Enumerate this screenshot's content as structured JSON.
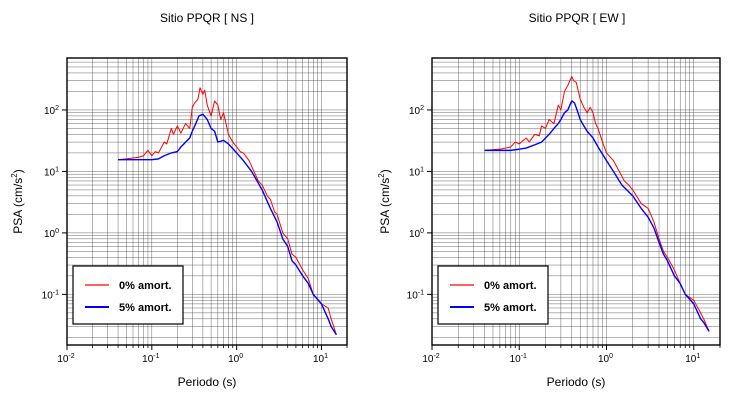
{
  "chart_data": [
    {
      "type": "line",
      "title": "Sitio PPQR [ NS ]",
      "xlabel": "Periodo (s)",
      "ylabel": "PSA (cm/s",
      "ylabel_sup": "2",
      "ylabel_close": ")",
      "xscale": "log",
      "yscale": "log",
      "xlim": [
        0.01,
        20
      ],
      "ylim": [
        0.015,
        700
      ],
      "grid": true,
      "legend_position": "bottom-left",
      "x_ticks": [
        {
          "base": "10",
          "exp": "-2"
        },
        {
          "base": "10",
          "exp": "-1"
        },
        {
          "base": "10",
          "exp": "0"
        },
        {
          "base": "10",
          "exp": "1"
        }
      ],
      "y_ticks": [
        {
          "base": "10",
          "exp": "-1"
        },
        {
          "base": "10",
          "exp": "0"
        },
        {
          "base": "10",
          "exp": "1"
        },
        {
          "base": "10",
          "exp": "2"
        }
      ],
      "series": [
        {
          "name": "0% amort.",
          "color": "#ff0000",
          "points": [
            [
              0.04,
              15.5
            ],
            [
              0.05,
              16
            ],
            [
              0.06,
              16.5
            ],
            [
              0.07,
              17
            ],
            [
              0.08,
              18
            ],
            [
              0.09,
              22
            ],
            [
              0.1,
              18
            ],
            [
              0.11,
              21
            ],
            [
              0.12,
              20
            ],
            [
              0.14,
              30
            ],
            [
              0.15,
              28
            ],
            [
              0.17,
              50
            ],
            [
              0.18,
              40
            ],
            [
              0.2,
              55
            ],
            [
              0.22,
              42
            ],
            [
              0.25,
              60
            ],
            [
              0.28,
              50
            ],
            [
              0.3,
              110
            ],
            [
              0.32,
              130
            ],
            [
              0.35,
              150
            ],
            [
              0.37,
              230
            ],
            [
              0.4,
              180
            ],
            [
              0.42,
              210
            ],
            [
              0.45,
              120
            ],
            [
              0.5,
              80
            ],
            [
              0.55,
              140
            ],
            [
              0.6,
              120
            ],
            [
              0.65,
              70
            ],
            [
              0.7,
              90
            ],
            [
              0.75,
              60
            ],
            [
              0.8,
              40
            ],
            [
              0.9,
              30
            ],
            [
              1.0,
              25
            ],
            [
              1.1,
              21
            ],
            [
              1.2,
              20
            ],
            [
              1.4,
              15
            ],
            [
              1.6,
              10
            ],
            [
              1.8,
              7
            ],
            [
              2.0,
              6
            ],
            [
              2.3,
              4
            ],
            [
              2.5,
              3.5
            ],
            [
              2.8,
              2.2
            ],
            [
              3.0,
              2.0
            ],
            [
              3.5,
              1.0
            ],
            [
              4.0,
              0.8
            ],
            [
              4.5,
              0.45
            ],
            [
              5.0,
              0.4
            ],
            [
              6.0,
              0.25
            ],
            [
              7.0,
              0.18
            ],
            [
              8.0,
              0.1
            ],
            [
              10,
              0.07
            ],
            [
              12,
              0.06
            ],
            [
              13,
              0.04
            ],
            [
              15,
              0.022
            ]
          ]
        },
        {
          "name": "5% amort.",
          "color": "#0000ff",
          "points": [
            [
              0.04,
              15.5
            ],
            [
              0.06,
              15.5
            ],
            [
              0.08,
              15.5
            ],
            [
              0.1,
              15.5
            ],
            [
              0.12,
              16
            ],
            [
              0.14,
              18
            ],
            [
              0.17,
              20
            ],
            [
              0.2,
              21
            ],
            [
              0.22,
              25
            ],
            [
              0.25,
              30
            ],
            [
              0.28,
              35
            ],
            [
              0.3,
              45
            ],
            [
              0.33,
              60
            ],
            [
              0.36,
              80
            ],
            [
              0.4,
              85
            ],
            [
              0.45,
              70
            ],
            [
              0.5,
              50
            ],
            [
              0.55,
              45
            ],
            [
              0.6,
              30
            ],
            [
              0.7,
              32
            ],
            [
              0.8,
              28
            ],
            [
              1.0,
              20
            ],
            [
              1.2,
              15
            ],
            [
              1.5,
              10
            ],
            [
              2.0,
              5
            ],
            [
              2.5,
              2.5
            ],
            [
              3.0,
              1.5
            ],
            [
              3.5,
              0.8
            ],
            [
              4.0,
              0.6
            ],
            [
              4.5,
              0.35
            ],
            [
              5.0,
              0.3
            ],
            [
              6.0,
              0.2
            ],
            [
              7.0,
              0.15
            ],
            [
              8.0,
              0.1
            ],
            [
              10,
              0.07
            ],
            [
              12,
              0.04
            ],
            [
              13,
              0.03
            ],
            [
              15,
              0.022
            ]
          ]
        }
      ]
    },
    {
      "type": "line",
      "title": "Sitio PPQR [ EW ]",
      "xlabel": "Periodo (s)",
      "ylabel": "PSA (cm/s",
      "ylabel_sup": "2",
      "ylabel_close": ")",
      "xscale": "log",
      "yscale": "log",
      "xlim": [
        0.01,
        20
      ],
      "ylim": [
        0.015,
        700
      ],
      "grid": true,
      "legend_position": "bottom-left",
      "x_ticks": [
        {
          "base": "10",
          "exp": "-2"
        },
        {
          "base": "10",
          "exp": "-1"
        },
        {
          "base": "10",
          "exp": "0"
        },
        {
          "base": "10",
          "exp": "1"
        }
      ],
      "y_ticks": [
        {
          "base": "10",
          "exp": "-1"
        },
        {
          "base": "10",
          "exp": "0"
        },
        {
          "base": "10",
          "exp": "1"
        },
        {
          "base": "10",
          "exp": "2"
        }
      ],
      "series": [
        {
          "name": "0% amort.",
          "color": "#ff0000",
          "points": [
            [
              0.04,
              22
            ],
            [
              0.06,
              23
            ],
            [
              0.08,
              25
            ],
            [
              0.09,
              30
            ],
            [
              0.1,
              28
            ],
            [
              0.12,
              35
            ],
            [
              0.13,
              30
            ],
            [
              0.15,
              40
            ],
            [
              0.17,
              38
            ],
            [
              0.18,
              55
            ],
            [
              0.2,
              50
            ],
            [
              0.22,
              70
            ],
            [
              0.25,
              60
            ],
            [
              0.28,
              120
            ],
            [
              0.3,
              100
            ],
            [
              0.33,
              200
            ],
            [
              0.36,
              250
            ],
            [
              0.4,
              350
            ],
            [
              0.42,
              300
            ],
            [
              0.45,
              280
            ],
            [
              0.5,
              150
            ],
            [
              0.55,
              110
            ],
            [
              0.6,
              90
            ],
            [
              0.65,
              110
            ],
            [
              0.7,
              90
            ],
            [
              0.75,
              60
            ],
            [
              0.8,
              50
            ],
            [
              0.9,
              30
            ],
            [
              1.0,
              20
            ],
            [
              1.2,
              15
            ],
            [
              1.4,
              10
            ],
            [
              1.6,
              7
            ],
            [
              1.8,
              6
            ],
            [
              2.0,
              5
            ],
            [
              2.5,
              3
            ],
            [
              3.0,
              2.5
            ],
            [
              3.5,
              1.5
            ],
            [
              4.0,
              0.8
            ],
            [
              4.5,
              0.5
            ],
            [
              5.0,
              0.4
            ],
            [
              6.0,
              0.25
            ],
            [
              7.0,
              0.15
            ],
            [
              8.0,
              0.1
            ],
            [
              10,
              0.08
            ],
            [
              12,
              0.05
            ],
            [
              13,
              0.04
            ],
            [
              15,
              0.025
            ]
          ]
        },
        {
          "name": "5% amort.",
          "color": "#0000ff",
          "points": [
            [
              0.04,
              22
            ],
            [
              0.06,
              22
            ],
            [
              0.08,
              22
            ],
            [
              0.1,
              23
            ],
            [
              0.12,
              24
            ],
            [
              0.15,
              27
            ],
            [
              0.18,
              30
            ],
            [
              0.2,
              35
            ],
            [
              0.22,
              40
            ],
            [
              0.25,
              50
            ],
            [
              0.28,
              60
            ],
            [
              0.3,
              70
            ],
            [
              0.33,
              90
            ],
            [
              0.36,
              100
            ],
            [
              0.4,
              140
            ],
            [
              0.43,
              130
            ],
            [
              0.46,
              100
            ],
            [
              0.5,
              70
            ],
            [
              0.55,
              55
            ],
            [
              0.6,
              45
            ],
            [
              0.7,
              35
            ],
            [
              0.8,
              25
            ],
            [
              1.0,
              15
            ],
            [
              1.2,
              10
            ],
            [
              1.5,
              6
            ],
            [
              2.0,
              4
            ],
            [
              2.5,
              2.5
            ],
            [
              3.0,
              1.8
            ],
            [
              3.5,
              1.2
            ],
            [
              4.0,
              0.7
            ],
            [
              4.5,
              0.45
            ],
            [
              5.0,
              0.35
            ],
            [
              6.0,
              0.2
            ],
            [
              7.0,
              0.15
            ],
            [
              8.0,
              0.1
            ],
            [
              10,
              0.07
            ],
            [
              12,
              0.04
            ],
            [
              13,
              0.035
            ],
            [
              15,
              0.025
            ]
          ]
        }
      ]
    }
  ]
}
